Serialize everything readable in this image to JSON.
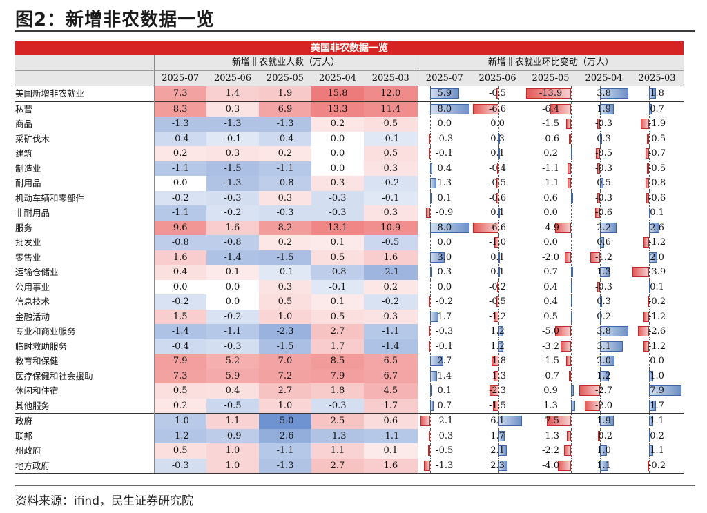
{
  "figure_title": "图2：新增非农数据一览",
  "banner_title": "美国非农数据一览",
  "group_headers": [
    "新增非农就业人数（万人）",
    "新增非农就业环比变动（万人）"
  ],
  "months": [
    "2025-07",
    "2025-06",
    "2025-05",
    "2025-04",
    "2025-03"
  ],
  "colors": {
    "heat_positive": "#ee4b4b",
    "heat_negative": "#4472c4",
    "bar_positive": "#6e90c6",
    "bar_negative": "#e35a5a",
    "banner": "#d62323"
  },
  "rows": [
    {
      "label": "美国新增非农就业",
      "indent": 0,
      "values": [
        7.3,
        1.4,
        1.9,
        15.8,
        12.0
      ],
      "changes": [
        5.9,
        -0.5,
        -13.9,
        3.8,
        1.8
      ]
    },
    {
      "label": "私营",
      "indent": 0,
      "values": [
        8.3,
        0.3,
        6.9,
        13.3,
        11.4
      ],
      "changes": [
        8.0,
        -6.6,
        -6.4,
        1.9,
        0.7
      ]
    },
    {
      "label": "商品",
      "indent": 1,
      "values": [
        -1.3,
        -1.3,
        -1.3,
        0.2,
        0.5
      ],
      "changes": [
        0.0,
        0.0,
        -1.5,
        -0.3,
        -1.9
      ]
    },
    {
      "label": "采矿伐木",
      "indent": 2,
      "values": [
        -0.4,
        -0.1,
        -0.4,
        0.0,
        -0.1
      ],
      "changes": [
        -0.3,
        0.3,
        -0.6,
        0.3,
        -0.5
      ]
    },
    {
      "label": "建筑",
      "indent": 2,
      "values": [
        0.2,
        0.3,
        0.2,
        0.0,
        0.5
      ],
      "changes": [
        -0.1,
        0.1,
        0.2,
        -0.5,
        -0.7
      ]
    },
    {
      "label": "制造业",
      "indent": 2,
      "values": [
        -1.1,
        -1.5,
        -1.1,
        0.0,
        0.3
      ],
      "changes": [
        0.4,
        -0.4,
        -1.1,
        -0.3,
        -0.5
      ]
    },
    {
      "label": "耐用品",
      "indent": 3,
      "values": [
        0.0,
        -1.3,
        -0.8,
        0.3,
        -0.2
      ],
      "changes": [
        1.3,
        -0.5,
        -1.1,
        0.5,
        -0.8
      ]
    },
    {
      "label": "机动车辆和零部件",
      "indent": 4,
      "values": [
        -0.2,
        -0.3,
        0.3,
        -0.3,
        -0.1
      ],
      "changes": [
        0.1,
        -0.6,
        0.6,
        -0.3,
        -0.6
      ]
    },
    {
      "label": "非耐用品",
      "indent": 3,
      "values": [
        -1.1,
        -0.2,
        -0.3,
        -0.3,
        0.3
      ],
      "changes": [
        -0.9,
        0.1,
        0.0,
        -0.6,
        0.1
      ]
    },
    {
      "label": "服务",
      "indent": 1,
      "values": [
        9.6,
        1.6,
        8.2,
        13.1,
        10.9
      ],
      "changes": [
        8.0,
        -6.6,
        -4.9,
        2.2,
        2.6
      ]
    },
    {
      "label": "批发业",
      "indent": 2,
      "values": [
        -0.8,
        -0.8,
        0.2,
        0.1,
        -0.5
      ],
      "changes": [
        0.0,
        -1.0,
        0.0,
        0.6,
        -1.2
      ]
    },
    {
      "label": "零售业",
      "indent": 2,
      "values": [
        1.6,
        -1.4,
        -1.5,
        0.5,
        1.6
      ],
      "changes": [
        3.0,
        0.1,
        -2.0,
        -1.2,
        2.0
      ]
    },
    {
      "label": "运输仓储业",
      "indent": 2,
      "values": [
        0.4,
        0.1,
        -0.1,
        -0.8,
        -2.1
      ],
      "changes": [
        0.3,
        0.1,
        0.7,
        1.3,
        -3.9
      ]
    },
    {
      "label": "公用事业",
      "indent": 2,
      "values": [
        0.0,
        0.0,
        0.3,
        -0.1,
        0.2
      ],
      "changes": [
        0.0,
        -0.2,
        0.4,
        -0.3,
        0.1
      ]
    },
    {
      "label": "信息技术",
      "indent": 2,
      "values": [
        -0.2,
        0.0,
        0.5,
        0.1,
        -0.2
      ],
      "changes": [
        -0.2,
        -0.5,
        0.4,
        0.3,
        -0.2
      ]
    },
    {
      "label": "金融活动",
      "indent": 2,
      "values": [
        1.5,
        -0.2,
        1.0,
        0.5,
        0.3
      ],
      "changes": [
        1.7,
        -1.2,
        0.5,
        0.2,
        -1.2
      ]
    },
    {
      "label": "专业和商业服务",
      "indent": 2,
      "values": [
        -1.4,
        -1.1,
        -2.3,
        2.7,
        -1.1
      ],
      "changes": [
        -0.3,
        1.2,
        -5.0,
        3.8,
        -2.6
      ]
    },
    {
      "label": "临时救助服务",
      "indent": 3,
      "values": [
        -0.4,
        -0.3,
        -1.5,
        1.7,
        -1.4
      ],
      "changes": [
        -0.1,
        1.2,
        -3.2,
        3.1,
        -1.2
      ]
    },
    {
      "label": "教育和保健",
      "indent": 2,
      "values": [
        7.9,
        5.2,
        7.0,
        8.5,
        6.5
      ],
      "changes": [
        2.7,
        -1.8,
        -1.5,
        2.0,
        0.0
      ]
    },
    {
      "label": "医疗保健和社会援助",
      "indent": 3,
      "values": [
        7.3,
        5.9,
        7.2,
        7.9,
        6.7
      ],
      "changes": [
        1.4,
        -1.3,
        -0.7,
        1.2,
        1.0
      ]
    },
    {
      "label": "休闲和住宿",
      "indent": 2,
      "values": [
        0.5,
        0.4,
        2.7,
        1.8,
        4.5
      ],
      "changes": [
        0.1,
        -2.3,
        0.9,
        -2.7,
        7.9
      ]
    },
    {
      "label": "其他服务",
      "indent": 2,
      "values": [
        0.2,
        -0.5,
        1.0,
        -0.3,
        1.7
      ],
      "changes": [
        0.7,
        -1.5,
        1.3,
        -2.0,
        1.7
      ]
    },
    {
      "label": "政府",
      "indent": 0,
      "values": [
        -1.0,
        1.1,
        -5.0,
        2.5,
        0.6
      ],
      "changes": [
        -2.1,
        6.1,
        -7.5,
        1.9,
        1.1
      ]
    },
    {
      "label": "联邦",
      "indent": 1,
      "values": [
        -1.2,
        -0.9,
        -2.6,
        -1.3,
        -1.1
      ],
      "changes": [
        -0.3,
        1.7,
        -1.3,
        -0.2,
        0.2
      ]
    },
    {
      "label": "州政府",
      "indent": 1,
      "values": [
        0.5,
        1.0,
        -1.1,
        1.1,
        0.1
      ],
      "changes": [
        -0.5,
        2.1,
        -2.2,
        1.0,
        1.1
      ]
    },
    {
      "label": "地方政府",
      "indent": 1,
      "values": [
        -0.3,
        1.0,
        -1.3,
        2.7,
        1.6
      ],
      "changes": [
        -1.3,
        2.3,
        -4.0,
        1.1,
        -0.2
      ]
    }
  ],
  "source": "资料来源：ifind，民生证券研究院"
}
